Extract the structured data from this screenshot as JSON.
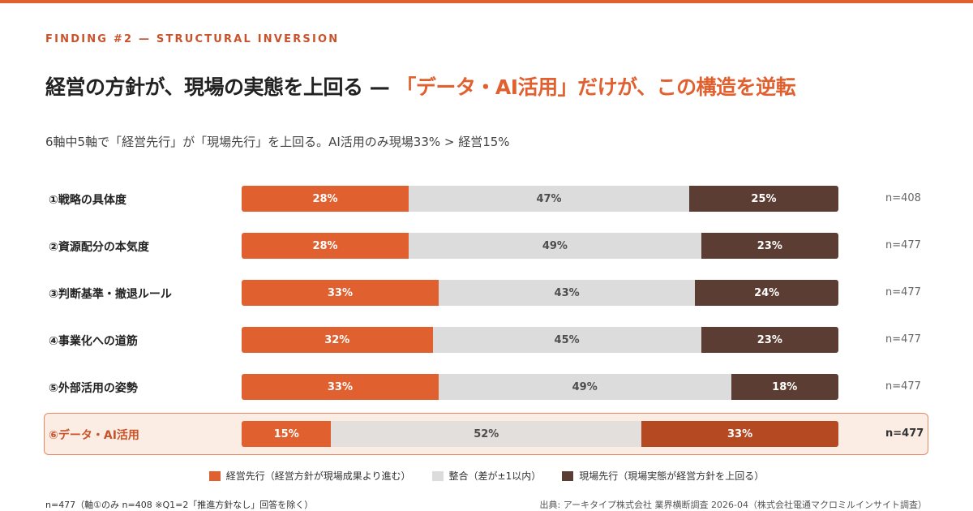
{
  "eyebrow": "FINDING #2 — STRUCTURAL INVERSION",
  "headline": {
    "main": "経営の方針が、現場の実態を上回る — ",
    "accent": "「データ・AI活用」だけが、この構造を逆転"
  },
  "subtitle": "6軸中5軸で「経営先行」が「現場先行」を上回る。AI活用のみ現場33% > 経営15%",
  "colors": {
    "management_lead": "#e0612f",
    "aligned": "#dcdcdc",
    "field_lead": "#5c3d33",
    "highlight_field_lead": "#b54a22",
    "highlight_border": "#e78a63",
    "highlight_bg": "#fbece4"
  },
  "chart_data": {
    "type": "bar",
    "orientation": "horizontal",
    "stacked": true,
    "normalized": true,
    "unit": "%",
    "categories": [
      "①戦略の具体度",
      "②資源配分の本気度",
      "③判断基準・撤退ルール",
      "④事業化への道筋",
      "⑤外部活用の姿勢",
      "⑥データ・AI活用"
    ],
    "series": [
      {
        "name": "経営先行（経営方針が現場成果より進む）",
        "values": [
          28,
          28,
          33,
          32,
          33,
          15
        ]
      },
      {
        "name": "整合（差が±1以内）",
        "values": [
          47,
          49,
          43,
          45,
          49,
          52
        ]
      },
      {
        "name": "現場先行（現場実態が経営方針を上回る）",
        "values": [
          25,
          23,
          24,
          23,
          18,
          33
        ]
      }
    ],
    "n": [
      "n=408",
      "n=477",
      "n=477",
      "n=477",
      "n=477",
      "n=477"
    ],
    "highlight_category": "⑥データ・AI活用",
    "legend_position": "bottom",
    "grid": false
  },
  "footnote": "n=477（軸①のみ n=408 ※Q1=2「推進方針なし」回答を除く）",
  "source": "出典: アーキタイプ株式会社 業界横断調査 2026-04（株式会社電通マクロミルインサイト調査）"
}
